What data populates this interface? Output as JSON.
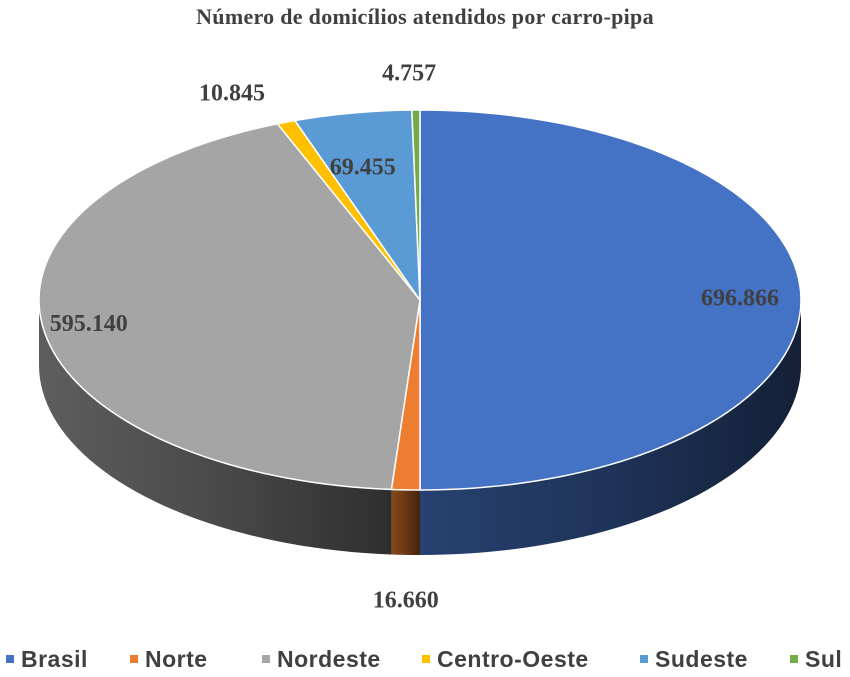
{
  "chart_data": {
    "type": "pie",
    "title": "Número de domicílios atendidos por carro-pipa",
    "categories": [
      "Brasil",
      "Norte",
      "Nordeste",
      "Centro-Oeste",
      "Sudeste",
      "Sul"
    ],
    "values": [
      696866,
      16660,
      595140,
      10845,
      69455,
      4757
    ],
    "value_labels": [
      "696.866",
      "16.660",
      "595.140",
      "10.845",
      "69.455",
      "4.757"
    ],
    "colors": [
      "#4472C4",
      "#ED7D31",
      "#A5A5A5",
      "#FFC000",
      "#5B9BD5",
      "#70AD47"
    ],
    "legend_position": "bottom",
    "style": "3d"
  }
}
